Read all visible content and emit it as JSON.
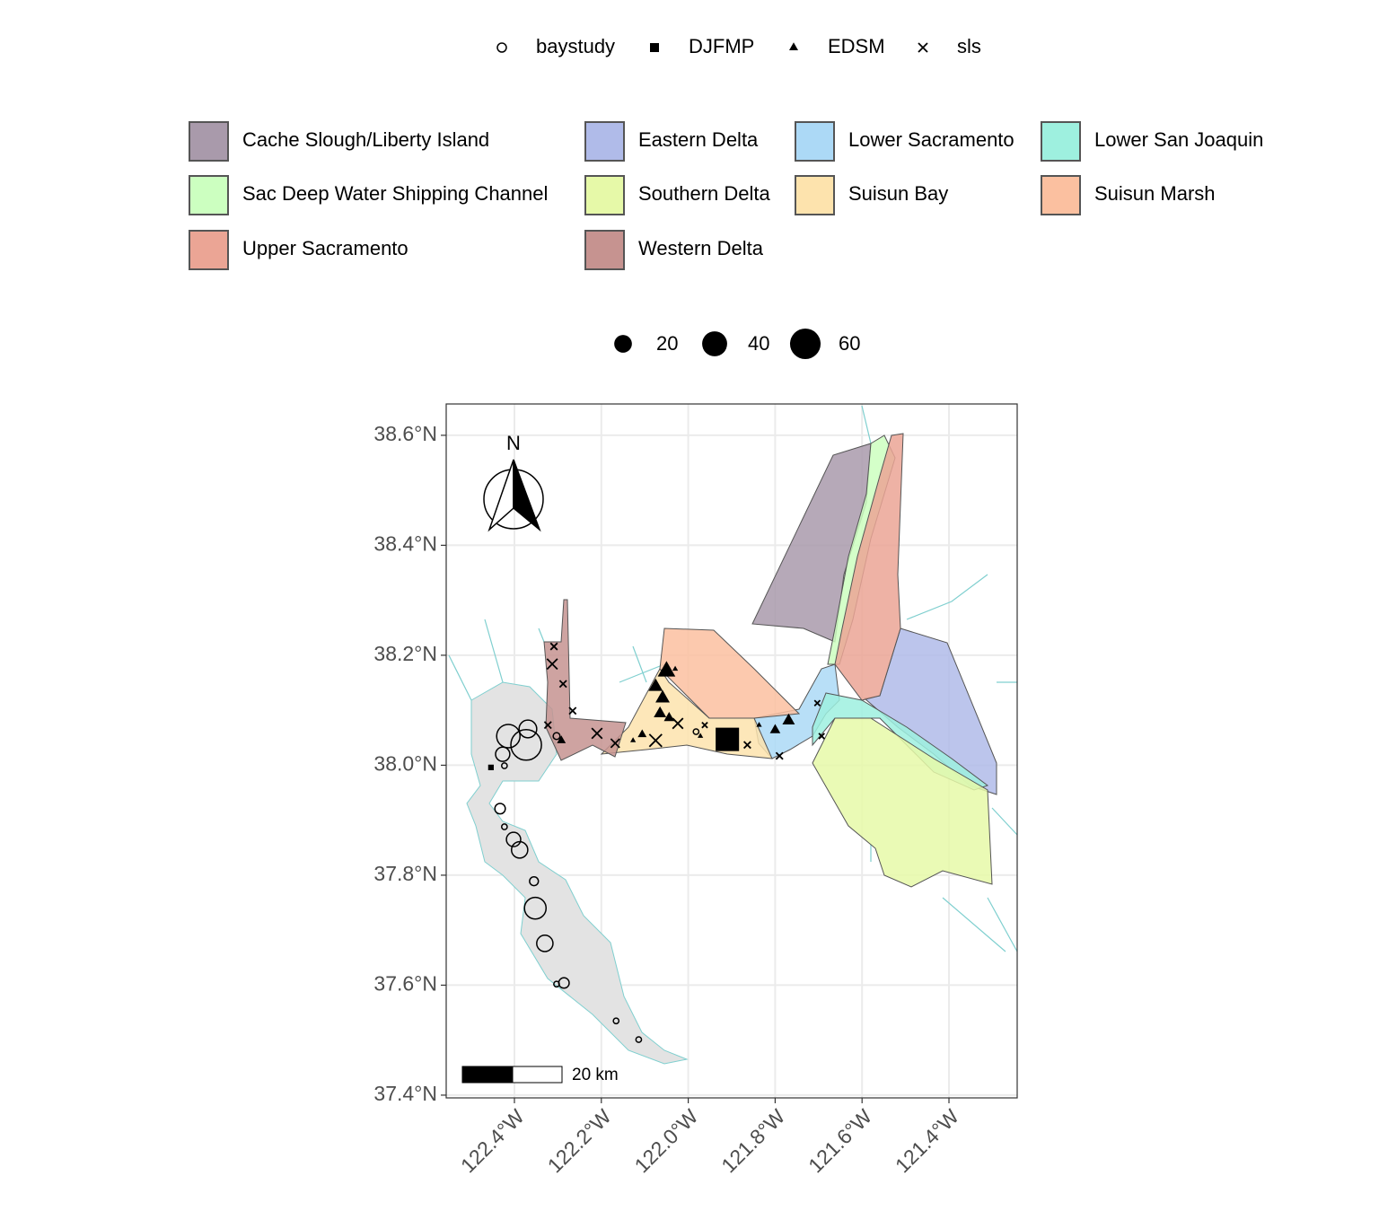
{
  "chart_data": {
    "type": "map",
    "xlim": [
      -122.557,
      -121.243
    ],
    "ylim": [
      37.395,
      38.657
    ],
    "xticks": [
      {
        "value": -122.4,
        "label": "122.4°W"
      },
      {
        "value": -122.2,
        "label": "122.2°W"
      },
      {
        "value": -122.0,
        "label": "122.0°W"
      },
      {
        "value": -121.8,
        "label": "121.8°W"
      },
      {
        "value": -121.6,
        "label": "121.6°W"
      },
      {
        "value": -121.4,
        "label": "121.4°W"
      }
    ],
    "yticks": [
      {
        "value": 37.4,
        "label": "37.4°N"
      },
      {
        "value": 37.6,
        "label": "37.6°N"
      },
      {
        "value": 37.8,
        "label": "37.8°N"
      },
      {
        "value": 38.0,
        "label": "38.0°N"
      },
      {
        "value": 38.2,
        "label": "38.2°N"
      },
      {
        "value": 38.4,
        "label": "38.4°N"
      },
      {
        "value": 38.6,
        "label": "38.6°N"
      }
    ],
    "grid": true,
    "series": [
      {
        "name": "baystudy",
        "shape": "circle",
        "color": "#000000",
        "x": [
          -122.414,
          -122.369,
          -122.373,
          -122.427,
          -122.423,
          -122.433,
          -122.423,
          -122.402,
          -122.388,
          -122.355,
          -122.352,
          -122.33,
          -122.286,
          -122.303,
          -122.166,
          -122.114,
          -122.303,
          -121.982
        ],
        "values": [
          38.053,
          38.066,
          38.037,
          38.02,
          37.999,
          37.921,
          37.888,
          37.865,
          37.846,
          37.789,
          37.74,
          37.676,
          37.604,
          37.602,
          37.535,
          37.501,
          38.053,
          38.061
        ],
        "sizes": [
          35,
          20,
          60,
          13,
          2,
          7,
          2,
          13,
          17,
          5,
          30,
          17,
          7,
          2,
          2,
          2,
          3,
          2
        ]
      },
      {
        "name": "DJFMP",
        "shape": "square",
        "color": "#000000",
        "x": [
          -122.454,
          -121.91
        ],
        "values": [
          37.996,
          38.047
        ],
        "sizes": [
          2,
          35
        ]
      },
      {
        "name": "EDSM",
        "shape": "triangle",
        "color": "#000000",
        "x": [
          -122.05,
          -122.075,
          -122.059,
          -122.065,
          -122.044,
          -122.106,
          -122.127,
          -122.292,
          -121.769,
          -121.8,
          -121.837,
          -122.03,
          -121.972
        ],
        "values": [
          38.171,
          38.143,
          38.122,
          38.094,
          38.086,
          38.056,
          38.045,
          38.045,
          38.081,
          38.064,
          38.073,
          38.175,
          38.053
        ],
        "sizes": [
          20,
          13,
          13,
          10,
          7,
          5,
          2,
          5,
          10,
          7,
          2,
          2,
          2
        ]
      },
      {
        "name": "sls",
        "shape": "cross",
        "color": "#000000",
        "x": [
          -122.309,
          -122.313,
          -122.288,
          -122.266,
          -122.323,
          -122.21,
          -122.168,
          -122.075,
          -122.024,
          -121.864,
          -121.79,
          -121.693,
          -121.703,
          -121.962
        ],
        "values": [
          38.216,
          38.184,
          38.148,
          38.099,
          38.073,
          38.058,
          38.04,
          38.045,
          38.076,
          38.037,
          38.017,
          38.053,
          38.113,
          38.073
        ],
        "sizes": [
          3,
          7,
          3,
          3,
          3,
          7,
          5,
          10,
          7,
          3,
          3,
          2,
          2,
          2
        ]
      }
    ],
    "regions": [
      {
        "name": "Cache Slough/Liberty Island",
        "color": "#a99aab"
      },
      {
        "name": "Eastern Delta",
        "color": "#b0bbe9"
      },
      {
        "name": "Lower Sacramento",
        "color": "#acd9f6"
      },
      {
        "name": "Lower San Joaquin",
        "color": "#9ef0df"
      },
      {
        "name": "Sac Deep Water Shipping Channel",
        "color": "#ccffc0"
      },
      {
        "name": "Southern Delta",
        "color": "#e6f9a8"
      },
      {
        "name": "Suisun Bay",
        "color": "#fde3ad"
      },
      {
        "name": "Suisun Marsh",
        "color": "#fbc0a0"
      },
      {
        "name": "Upper Sacramento",
        "color": "#eba595"
      },
      {
        "name": "Western Delta",
        "color": "#c69390"
      }
    ],
    "size_legend": [
      20,
      40,
      60
    ],
    "north_label": "N",
    "scale_bar_label": "20 km"
  }
}
